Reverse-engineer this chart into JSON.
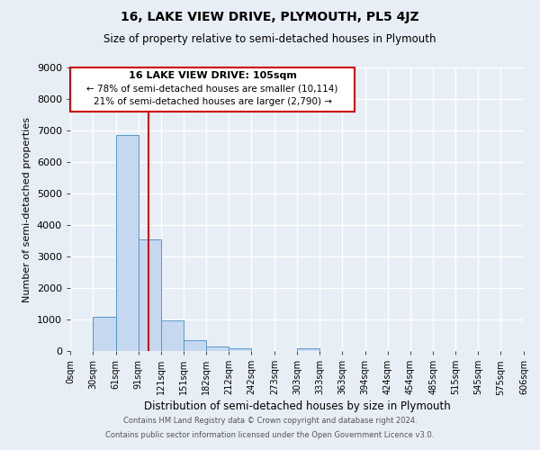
{
  "title": "16, LAKE VIEW DRIVE, PLYMOUTH, PL5 4JZ",
  "subtitle": "Size of property relative to semi-detached houses in Plymouth",
  "xlabel": "Distribution of semi-detached houses by size in Plymouth",
  "ylabel": "Number of semi-detached properties",
  "bin_labels": [
    "0sqm",
    "30sqm",
    "61sqm",
    "91sqm",
    "121sqm",
    "151sqm",
    "182sqm",
    "212sqm",
    "242sqm",
    "273sqm",
    "303sqm",
    "333sqm",
    "363sqm",
    "394sqm",
    "424sqm",
    "454sqm",
    "485sqm",
    "515sqm",
    "545sqm",
    "575sqm",
    "606sqm"
  ],
  "bar_values": [
    0,
    1100,
    6850,
    3550,
    960,
    340,
    130,
    80,
    0,
    0,
    80,
    0,
    0,
    0,
    0,
    0,
    0,
    0,
    0,
    0
  ],
  "bar_color": "#c5d8f0",
  "bar_edge_color": "#5599cc",
  "ylim": [
    0,
    9000
  ],
  "yticks": [
    0,
    1000,
    2000,
    3000,
    4000,
    5000,
    6000,
    7000,
    8000,
    9000
  ],
  "bin_edges": [
    0,
    30,
    61,
    91,
    121,
    151,
    182,
    212,
    242,
    273,
    303,
    333,
    363,
    394,
    424,
    454,
    485,
    515,
    545,
    575,
    606
  ],
  "vline_x": 105,
  "annotation_title": "16 LAKE VIEW DRIVE: 105sqm",
  "annotation_line1": "← 78% of semi-detached houses are smaller (10,114)",
  "annotation_line2": "21% of semi-detached houses are larger (2,790) →",
  "annotation_box_color": "#ffffff",
  "annotation_box_edge_color": "#cc0000",
  "vline_color": "#cc0000",
  "footer1": "Contains HM Land Registry data © Crown copyright and database right 2024.",
  "footer2": "Contains public sector information licensed under the Open Government Licence v3.0.",
  "background_color": "#e8eef5",
  "grid_color": "#ffffff"
}
